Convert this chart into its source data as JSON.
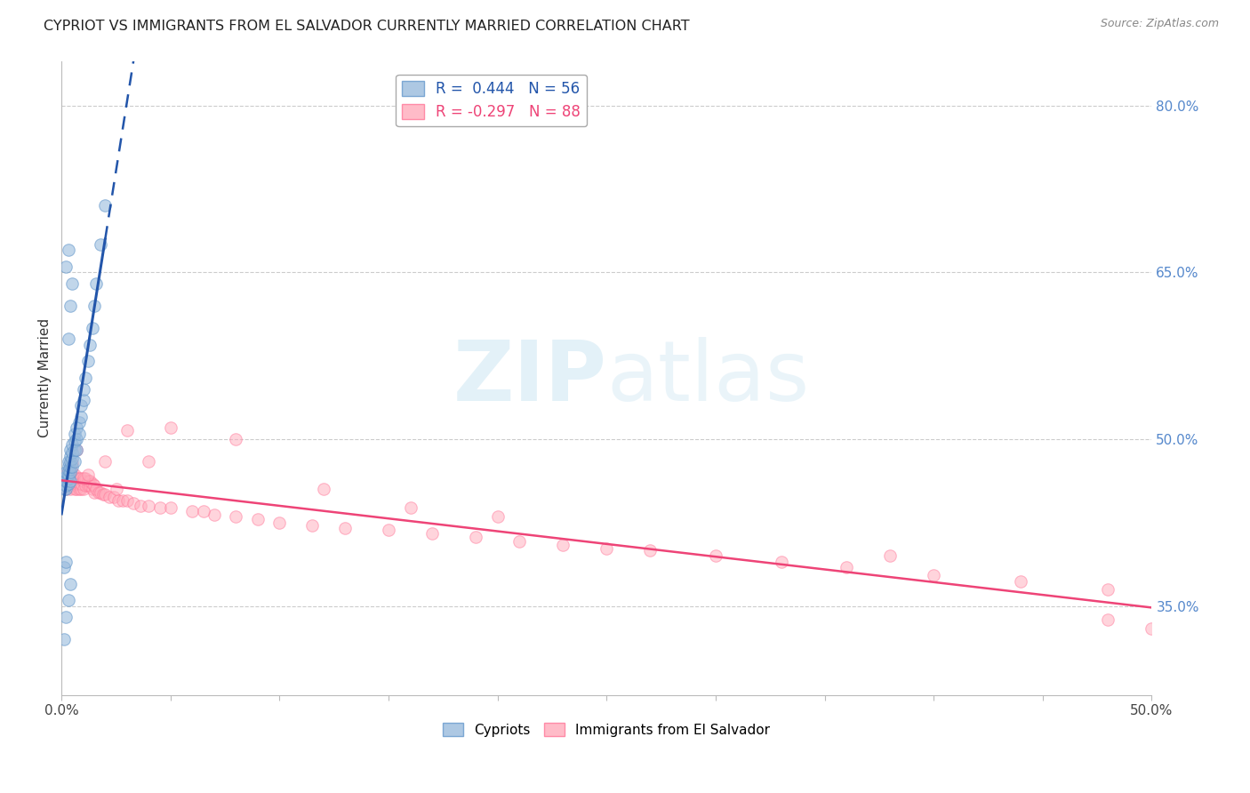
{
  "title": "CYPRIOT VS IMMIGRANTS FROM EL SALVADOR CURRENTLY MARRIED CORRELATION CHART",
  "source": "Source: ZipAtlas.com",
  "ylabel": "Currently Married",
  "right_yticks": [
    "80.0%",
    "65.0%",
    "50.0%",
    "35.0%"
  ],
  "right_ytick_vals": [
    0.8,
    0.65,
    0.5,
    0.35
  ],
  "watermark_zip": "ZIP",
  "watermark_atlas": "atlas",
  "legend_blue_r": "R =  0.444",
  "legend_blue_n": "N = 56",
  "legend_pink_r": "R = -0.297",
  "legend_pink_n": "N = 88",
  "blue_color": "#99BBDD",
  "blue_edge_color": "#6699CC",
  "pink_color": "#FFAABB",
  "pink_edge_color": "#FF7799",
  "blue_line_color": "#2255AA",
  "pink_line_color": "#EE4477",
  "blue_scatter_alpha": 0.6,
  "pink_scatter_alpha": 0.5,
  "marker_size": 95,
  "xlim": [
    0.0,
    0.5
  ],
  "ylim": [
    0.27,
    0.84
  ],
  "blue_x": [
    0.001,
    0.001,
    0.001,
    0.002,
    0.002,
    0.002,
    0.002,
    0.002,
    0.003,
    0.003,
    0.003,
    0.003,
    0.003,
    0.003,
    0.004,
    0.004,
    0.004,
    0.004,
    0.004,
    0.004,
    0.005,
    0.005,
    0.005,
    0.005,
    0.006,
    0.006,
    0.006,
    0.006,
    0.007,
    0.007,
    0.007,
    0.008,
    0.008,
    0.009,
    0.009,
    0.01,
    0.01,
    0.011,
    0.012,
    0.013,
    0.014,
    0.015,
    0.016,
    0.018,
    0.02,
    0.003,
    0.004,
    0.005,
    0.002,
    0.003,
    0.001,
    0.002,
    0.003,
    0.004,
    0.001,
    0.002
  ],
  "blue_y": [
    0.455,
    0.46,
    0.465,
    0.455,
    0.458,
    0.462,
    0.466,
    0.47,
    0.46,
    0.465,
    0.468,
    0.472,
    0.476,
    0.48,
    0.462,
    0.47,
    0.475,
    0.48,
    0.485,
    0.49,
    0.475,
    0.482,
    0.488,
    0.495,
    0.48,
    0.49,
    0.498,
    0.505,
    0.49,
    0.5,
    0.51,
    0.505,
    0.515,
    0.52,
    0.53,
    0.535,
    0.545,
    0.555,
    0.57,
    0.585,
    0.6,
    0.62,
    0.64,
    0.675,
    0.71,
    0.59,
    0.62,
    0.64,
    0.655,
    0.67,
    0.32,
    0.34,
    0.355,
    0.37,
    0.385,
    0.39
  ],
  "pink_x": [
    0.001,
    0.002,
    0.002,
    0.003,
    0.003,
    0.003,
    0.004,
    0.004,
    0.004,
    0.005,
    0.005,
    0.005,
    0.006,
    0.006,
    0.006,
    0.007,
    0.007,
    0.007,
    0.008,
    0.008,
    0.008,
    0.009,
    0.009,
    0.009,
    0.01,
    0.01,
    0.011,
    0.011,
    0.012,
    0.012,
    0.013,
    0.013,
    0.014,
    0.014,
    0.015,
    0.015,
    0.016,
    0.017,
    0.018,
    0.019,
    0.02,
    0.022,
    0.024,
    0.026,
    0.028,
    0.03,
    0.033,
    0.036,
    0.04,
    0.045,
    0.05,
    0.06,
    0.07,
    0.08,
    0.09,
    0.1,
    0.115,
    0.13,
    0.15,
    0.17,
    0.19,
    0.21,
    0.23,
    0.25,
    0.27,
    0.3,
    0.33,
    0.36,
    0.4,
    0.44,
    0.48,
    0.01,
    0.02,
    0.03,
    0.05,
    0.08,
    0.12,
    0.16,
    0.005,
    0.007,
    0.012,
    0.025,
    0.04,
    0.065,
    0.48,
    0.5,
    0.38,
    0.2
  ],
  "pink_y": [
    0.462,
    0.455,
    0.468,
    0.458,
    0.463,
    0.47,
    0.455,
    0.462,
    0.468,
    0.458,
    0.463,
    0.47,
    0.455,
    0.462,
    0.468,
    0.455,
    0.46,
    0.465,
    0.455,
    0.46,
    0.465,
    0.455,
    0.46,
    0.465,
    0.455,
    0.462,
    0.458,
    0.465,
    0.458,
    0.462,
    0.458,
    0.462,
    0.455,
    0.46,
    0.452,
    0.458,
    0.455,
    0.452,
    0.452,
    0.45,
    0.45,
    0.448,
    0.448,
    0.445,
    0.445,
    0.445,
    0.442,
    0.44,
    0.44,
    0.438,
    0.438,
    0.435,
    0.432,
    0.43,
    0.428,
    0.425,
    0.422,
    0.42,
    0.418,
    0.415,
    0.412,
    0.408,
    0.405,
    0.402,
    0.4,
    0.395,
    0.39,
    0.385,
    0.378,
    0.372,
    0.365,
    0.465,
    0.48,
    0.508,
    0.51,
    0.5,
    0.455,
    0.438,
    0.478,
    0.49,
    0.468,
    0.455,
    0.48,
    0.435,
    0.338,
    0.33,
    0.395,
    0.43
  ],
  "grid_color": "#CCCCCC",
  "background_color": "#FFFFFF",
  "title_fontsize": 11.5,
  "source_fontsize": 9,
  "label_fontsize": 11,
  "legend_fontsize": 12,
  "tick_fontsize": 11
}
